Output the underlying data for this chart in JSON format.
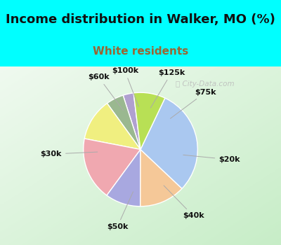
{
  "title": "Income distribution in Walker, MO (%)",
  "subtitle": "White residents",
  "title_fontsize": 13,
  "subtitle_fontsize": 11,
  "title_color": "#111111",
  "subtitle_color": "#996633",
  "bg_top_color": "#00ffff",
  "bg_bottom_color": "#00ffff",
  "chart_bg_left": "#f0f8f0",
  "chart_bg_right": "#d8edd8",
  "labels": [
    "$100k",
    "$125k",
    "$75k",
    "$20k",
    "$40k",
    "$50k",
    "$30k",
    "$60k"
  ],
  "sizes": [
    3,
    5,
    12,
    18,
    10,
    13,
    30,
    9
  ],
  "colors": [
    "#b0a0d0",
    "#9ab890",
    "#f0ef80",
    "#f0a8b0",
    "#a8a8e0",
    "#f5c898",
    "#aac8f0",
    "#b8e055"
  ],
  "startangle": 97,
  "label_fontsize": 8,
  "label_color": "#111111",
  "watermark": "ⓘ City-Data.com",
  "watermark_color": "#bbbbbb",
  "line_color": "#aaaaaa"
}
